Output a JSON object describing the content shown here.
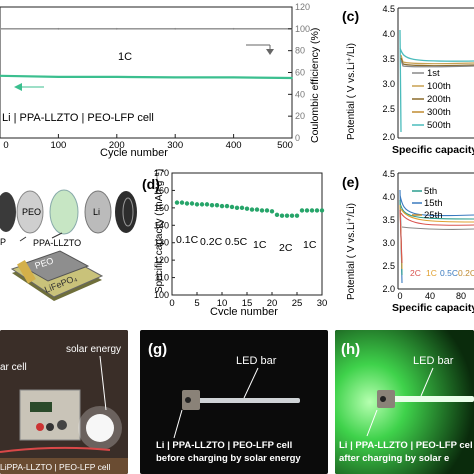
{
  "panels": {
    "b": {
      "xlabel": "Cycle number",
      "ylabel_right": "Coulombic efficiency (%)",
      "rate_label": "1C",
      "cell_label": "Li | PPA-LLZTO | PEO-LFP cell",
      "x_ticks": [
        "0",
        "100",
        "200",
        "300",
        "400",
        "500"
      ],
      "y_ticks": [
        "120",
        "100",
        "80",
        "60",
        "40",
        "20",
        "0"
      ]
    },
    "c": {
      "letter": "(c)",
      "ylabel": "Potential ( V vs.Li⁺/Li)",
      "xlabel": "Specific capacity",
      "y_ticks": [
        "4.5",
        "4.0",
        "3.5",
        "3.0",
        "2.5",
        "2.0"
      ],
      "legend": [
        "1st",
        "100th",
        "200th",
        "300th",
        "500th"
      ],
      "legend_colors": [
        "#888888",
        "#c8a050",
        "#8b6b2b",
        "#c08a30",
        "#4bbcbc"
      ]
    },
    "illustration": {
      "labels": [
        "PEO",
        "Li",
        "P",
        "PPA-LLZTO",
        "PEO",
        "LiFePO₄"
      ]
    },
    "d": {
      "letter": "(d)",
      "ylabel": "Specific capacity ( mAh g⁻¹)",
      "xlabel": "Cycle number",
      "x_ticks": [
        "0",
        "5",
        "10",
        "15",
        "20",
        "25",
        "30"
      ],
      "y_ticks": [
        "100",
        "110",
        "120",
        "130",
        "140",
        "150",
        "160",
        "170"
      ],
      "rate_labels": [
        "0.1C",
        "0.2C",
        "0.5C",
        "1C",
        "2C",
        "1C"
      ]
    },
    "e": {
      "letter": "(e)",
      "ylabel": "Potential ( V vs.Li⁺/Li)",
      "xlabel": "Specific capacity",
      "y_ticks": [
        "4.5",
        "4.0",
        "3.5",
        "3.0",
        "2.5",
        "2.0"
      ],
      "x_ticks": [
        "0",
        "40",
        "80"
      ],
      "legend": [
        "5th",
        "15th",
        "25th"
      ],
      "rate_legend": [
        "2C",
        "1C",
        "0.5C",
        "0.2C"
      ],
      "rate_colors": [
        "#d9534f",
        "#e0a030",
        "#3a7abf",
        "#c08a30"
      ]
    },
    "f": {
      "labels": [
        "solar energy",
        "ar cell",
        "LiPPA-LLZTO | PEO-LFP cell"
      ]
    },
    "g": {
      "letter": "(g)",
      "led": "LED bar",
      "caption1": "Li | PPA-LLZTO | PEO-LFP cell",
      "caption2": "before charging by solar energy"
    },
    "h": {
      "letter": "(h)",
      "led": "LED bar",
      "caption1": "Li | PPA-LLZTO | PEO-LFP cel",
      "caption2": "after charging by solar e"
    }
  },
  "chart_data": [
    {
      "type": "line",
      "panel": "b",
      "xlabel": "Cycle number",
      "ylabel": "Coulombic efficiency (%)",
      "xlim": [
        0,
        500
      ],
      "ylim": [
        0,
        120
      ],
      "series": [
        {
          "x": [
            0,
            100,
            200,
            300,
            400,
            500
          ],
          "values": [
            100,
            100,
            100,
            100,
            100,
            100
          ]
        },
        {
          "x": [
            0,
            100,
            200,
            300,
            400,
            500
          ],
          "values": [
            57,
            56,
            56,
            55.5,
            55.5,
            55
          ]
        }
      ]
    },
    {
      "type": "scatter",
      "panel": "d",
      "xlabel": "Cycle number",
      "ylabel": "Specific capacity ( mAh g⁻¹)",
      "xlim": [
        0,
        30
      ],
      "ylim": [
        100,
        170
      ],
      "x": [
        1,
        2,
        3,
        4,
        5,
        6,
        7,
        8,
        9,
        10,
        11,
        12,
        13,
        14,
        15,
        16,
        17,
        18,
        19,
        20,
        21,
        22,
        23,
        24,
        25,
        26,
        27,
        28,
        29,
        30
      ],
      "values": [
        153,
        153,
        152.5,
        152.5,
        152,
        152,
        152,
        151.5,
        151.5,
        151,
        151,
        150.5,
        150,
        150,
        149.5,
        149,
        149,
        148.5,
        148.5,
        148,
        146,
        145.5,
        145.5,
        145.5,
        145.5,
        148.5,
        148.5,
        148.5,
        148.5,
        148.5
      ]
    }
  ]
}
